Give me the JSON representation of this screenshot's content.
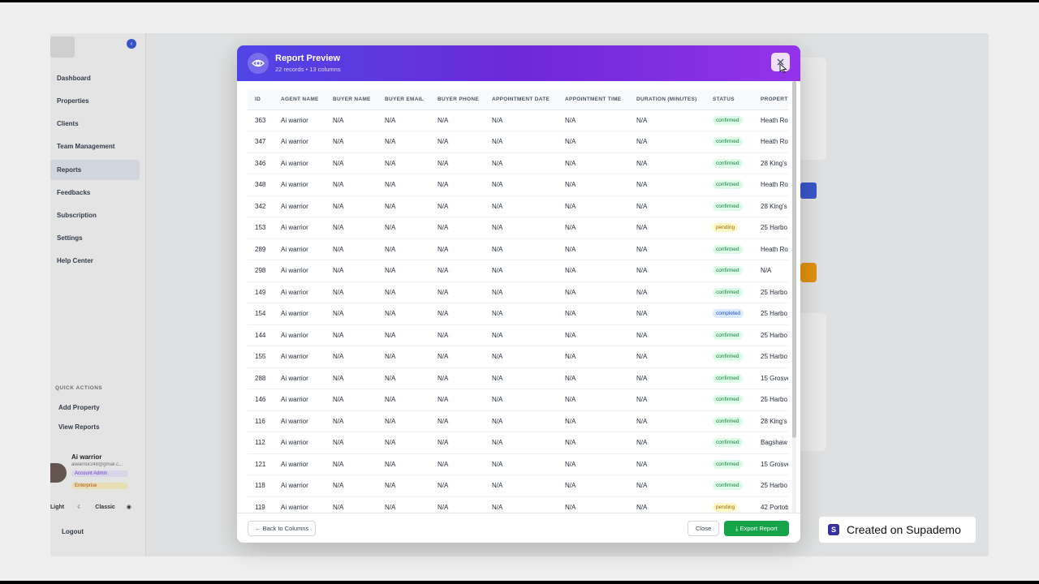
{
  "sidebar": {
    "items": [
      {
        "label": "Dashboard"
      },
      {
        "label": "Properties"
      },
      {
        "label": "Clients"
      },
      {
        "label": "Team Management"
      },
      {
        "label": "Reports",
        "active": true
      },
      {
        "label": "Feedbacks"
      },
      {
        "label": "Subscription"
      },
      {
        "label": "Settings"
      },
      {
        "label": "Help Center"
      }
    ],
    "quick_actions_title": "QUICK ACTIONS",
    "quick_actions": [
      {
        "label": "Add Property"
      },
      {
        "label": "View Reports"
      }
    ],
    "user": {
      "name": "Ai warrior",
      "email": "aiwarrior248@gmail.c...",
      "role": "Account Admin",
      "plan": "Enterprise"
    },
    "theme": {
      "light": "Light",
      "classic": "Classic"
    },
    "logout": "Logout"
  },
  "modal": {
    "title": "Report Preview",
    "subtitle": "22 records • 13 columns",
    "columns": [
      "ID",
      "AGENT NAME",
      "BUYER NAME",
      "BUYER EMAIL",
      "BUYER PHONE",
      "APPOINTMENT DATE",
      "APPOINTMENT TIME",
      "DURATION (MINUTES)",
      "STATUS",
      "PROPERTY"
    ],
    "rows": [
      {
        "id": "363",
        "agent": "Ai warrior",
        "buyer_name": "N/A",
        "buyer_email": "N/A",
        "buyer_phone": "N/A",
        "date": "N/A",
        "time": "N/A",
        "duration": "N/A",
        "status": "confirmed",
        "property": "Heath Ro"
      },
      {
        "id": "347",
        "agent": "Ai warrior",
        "buyer_name": "N/A",
        "buyer_email": "N/A",
        "buyer_phone": "N/A",
        "date": "N/A",
        "time": "N/A",
        "duration": "N/A",
        "status": "confirmed",
        "property": "Heath Ro"
      },
      {
        "id": "346",
        "agent": "Ai warrior",
        "buyer_name": "N/A",
        "buyer_email": "N/A",
        "buyer_phone": "N/A",
        "date": "N/A",
        "time": "N/A",
        "duration": "N/A",
        "status": "confirmed",
        "property": "28 King's"
      },
      {
        "id": "348",
        "agent": "Ai warrior",
        "buyer_name": "N/A",
        "buyer_email": "N/A",
        "buyer_phone": "N/A",
        "date": "N/A",
        "time": "N/A",
        "duration": "N/A",
        "status": "confirmed",
        "property": "Heath Ro"
      },
      {
        "id": "342",
        "agent": "Ai warrior",
        "buyer_name": "N/A",
        "buyer_email": "N/A",
        "buyer_phone": "N/A",
        "date": "N/A",
        "time": "N/A",
        "duration": "N/A",
        "status": "confirmed",
        "property": "28 King's"
      },
      {
        "id": "153",
        "agent": "Ai warrior",
        "buyer_name": "N/A",
        "buyer_email": "N/A",
        "buyer_phone": "N/A",
        "date": "N/A",
        "time": "N/A",
        "duration": "N/A",
        "status": "pending",
        "property": "25 Harbo"
      },
      {
        "id": "289",
        "agent": "Ai warrior",
        "buyer_name": "N/A",
        "buyer_email": "N/A",
        "buyer_phone": "N/A",
        "date": "N/A",
        "time": "N/A",
        "duration": "N/A",
        "status": "confirmed",
        "property": "Heath Ro"
      },
      {
        "id": "298",
        "agent": "Ai warrior",
        "buyer_name": "N/A",
        "buyer_email": "N/A",
        "buyer_phone": "N/A",
        "date": "N/A",
        "time": "N/A",
        "duration": "N/A",
        "status": "confirmed",
        "property": "N/A"
      },
      {
        "id": "149",
        "agent": "Ai warrior",
        "buyer_name": "N/A",
        "buyer_email": "N/A",
        "buyer_phone": "N/A",
        "date": "N/A",
        "time": "N/A",
        "duration": "N/A",
        "status": "confirmed",
        "property": "25 Harbo"
      },
      {
        "id": "154",
        "agent": "Ai warrior",
        "buyer_name": "N/A",
        "buyer_email": "N/A",
        "buyer_phone": "N/A",
        "date": "N/A",
        "time": "N/A",
        "duration": "N/A",
        "status": "completed",
        "property": "25 Harbo"
      },
      {
        "id": "144",
        "agent": "Ai warrior",
        "buyer_name": "N/A",
        "buyer_email": "N/A",
        "buyer_phone": "N/A",
        "date": "N/A",
        "time": "N/A",
        "duration": "N/A",
        "status": "confirmed",
        "property": "25 Harbo"
      },
      {
        "id": "155",
        "agent": "Ai warrior",
        "buyer_name": "N/A",
        "buyer_email": "N/A",
        "buyer_phone": "N/A",
        "date": "N/A",
        "time": "N/A",
        "duration": "N/A",
        "status": "confirmed",
        "property": "25 Harbo"
      },
      {
        "id": "288",
        "agent": "Ai warrior",
        "buyer_name": "N/A",
        "buyer_email": "N/A",
        "buyer_phone": "N/A",
        "date": "N/A",
        "time": "N/A",
        "duration": "N/A",
        "status": "confirmed",
        "property": "15 Grosve"
      },
      {
        "id": "146",
        "agent": "Ai warrior",
        "buyer_name": "N/A",
        "buyer_email": "N/A",
        "buyer_phone": "N/A",
        "date": "N/A",
        "time": "N/A",
        "duration": "N/A",
        "status": "confirmed",
        "property": "25 Harbo"
      },
      {
        "id": "116",
        "agent": "Ai warrior",
        "buyer_name": "N/A",
        "buyer_email": "N/A",
        "buyer_phone": "N/A",
        "date": "N/A",
        "time": "N/A",
        "duration": "N/A",
        "status": "confirmed",
        "property": "28 King's"
      },
      {
        "id": "112",
        "agent": "Ai warrior",
        "buyer_name": "N/A",
        "buyer_email": "N/A",
        "buyer_phone": "N/A",
        "date": "N/A",
        "time": "N/A",
        "duration": "N/A",
        "status": "confirmed",
        "property": "Bagshaw"
      },
      {
        "id": "121",
        "agent": "Ai warrior",
        "buyer_name": "N/A",
        "buyer_email": "N/A",
        "buyer_phone": "N/A",
        "date": "N/A",
        "time": "N/A",
        "duration": "N/A",
        "status": "confirmed",
        "property": "15 Grosve"
      },
      {
        "id": "118",
        "agent": "Ai warrior",
        "buyer_name": "N/A",
        "buyer_email": "N/A",
        "buyer_phone": "N/A",
        "date": "N/A",
        "time": "N/A",
        "duration": "N/A",
        "status": "confirmed",
        "property": "25 Harbo"
      },
      {
        "id": "119",
        "agent": "Ai warrior",
        "buyer_name": "N/A",
        "buyer_email": "N/A",
        "buyer_phone": "N/A",
        "date": "N/A",
        "time": "N/A",
        "duration": "N/A",
        "status": "pending",
        "property": "42 Portob"
      }
    ],
    "footer": {
      "back_label": "← Back to Columns",
      "close_label": "Close",
      "export_label": "Export Report"
    }
  },
  "watermark": {
    "text": "Created on Supademo",
    "logo_letter": "S"
  },
  "colors": {
    "header_start": "#4f46e5",
    "header_end": "#9333ea",
    "export": "#16a34a"
  }
}
